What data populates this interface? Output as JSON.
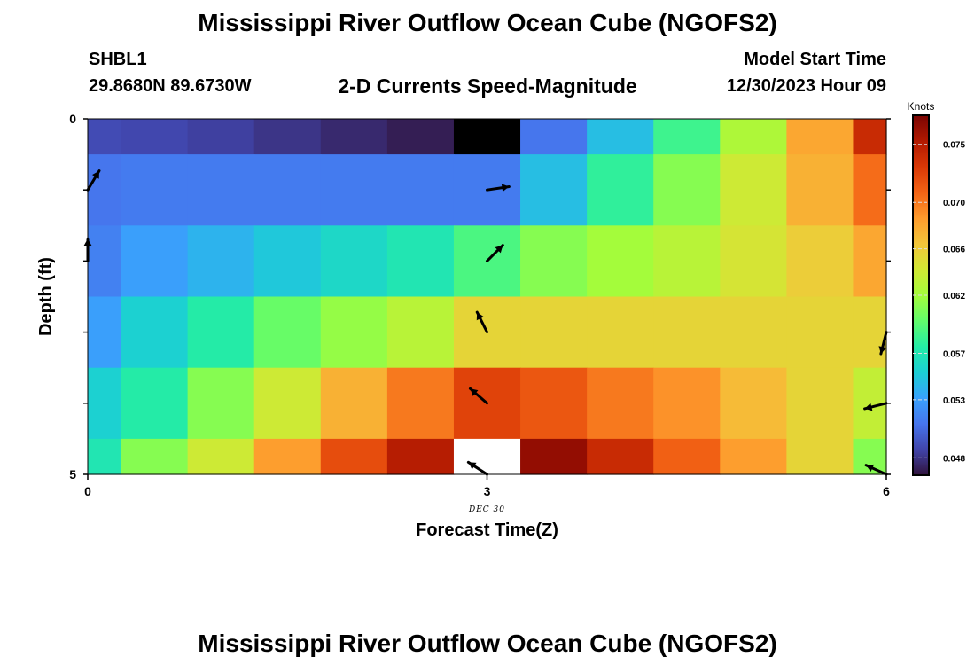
{
  "header": {
    "title": "Mississippi River Outflow Ocean Cube (NGOFS2)",
    "station_name": "SHBL1",
    "station_coords": "29.8680N  89.6730W",
    "plot_title": "2-D Currents Speed-Magnitude",
    "model_start_label": "Model Start Time",
    "model_start_value": "12/30/2023 Hour 09"
  },
  "footer": {
    "title": "Mississippi River Outflow Ocean Cube (NGOFS2)"
  },
  "chart_data": {
    "type": "heatmap",
    "title": "2-D Currents Speed-Magnitude",
    "xlabel": "Forecast Time(Z)",
    "ylabel": "Depth (ft)",
    "x_ticks": [
      "0",
      "3",
      "6"
    ],
    "x_sublabel": "DEC 30",
    "y_ticks": [
      "0",
      "5"
    ],
    "xlim": [
      0,
      6
    ],
    "ylim": [
      0,
      5
    ],
    "colorbar": {
      "unit": "Knots",
      "range": [
        0.0465,
        0.0775
      ],
      "ticks": [
        "0.075",
        "0.070",
        "0.066",
        "0.062",
        "0.057",
        "0.053",
        "0.048"
      ],
      "tick_values": [
        0.075,
        0.07,
        0.066,
        0.062,
        0.057,
        0.053,
        0.048
      ],
      "colors": [
        "#30123b",
        "#4145ab",
        "#4675ed",
        "#39a2fc",
        "#1bcfd4",
        "#24eca6",
        "#61fc6c",
        "#a4fc3b",
        "#d1e834",
        "#f3c63a",
        "#fe9b2d",
        "#f36315",
        "#d93806",
        "#b11901",
        "#7a0402"
      ]
    },
    "x_edges": [
      0,
      0.25,
      0.75,
      1.25,
      1.75,
      2.25,
      2.75,
      3.25,
      3.75,
      4.25,
      4.75,
      5.25,
      5.75,
      6
    ],
    "y_edges": [
      0,
      0.5,
      1.5,
      2.5,
      3.5,
      4.5,
      5
    ],
    "rows": [
      {
        "depth": 0,
        "values": [
          0.049,
          0.0488,
          0.0485,
          0.048,
          0.0475,
          0.047,
          "black",
          0.051,
          0.0545,
          0.0585,
          0.0625,
          0.068,
          0.074
        ]
      },
      {
        "depth": 1,
        "values": [
          0.051,
          0.0512,
          0.0512,
          0.0512,
          0.0512,
          0.0512,
          0.0512,
          0.0545,
          0.058,
          0.061,
          0.064,
          0.0675,
          0.0705
        ]
      },
      {
        "depth": 2,
        "values": [
          0.0515,
          0.053,
          0.054,
          0.055,
          0.056,
          0.057,
          0.059,
          0.061,
          0.062,
          0.063,
          0.0645,
          0.066,
          0.068
        ]
      },
      {
        "depth": 3,
        "values": [
          0.053,
          0.0555,
          0.0575,
          0.06,
          0.0615,
          0.063,
          0.0655,
          0.0655,
          0.0655,
          0.0655,
          0.0655,
          0.0655,
          0.0655
        ]
      },
      {
        "depth": 4,
        "values": [
          0.0555,
          0.0575,
          0.061,
          0.064,
          0.0675,
          0.07,
          0.0725,
          0.0715,
          0.07,
          0.069,
          0.067,
          0.0655,
          0.0635
        ]
      },
      {
        "depth": 5,
        "values": [
          0.057,
          0.061,
          0.064,
          0.0685,
          0.072,
          0.075,
          "white",
          0.0765,
          0.074,
          0.071,
          0.0685,
          0.0655,
          0.061
        ]
      }
    ],
    "arrows": [
      {
        "time": 0.0,
        "depth": 1.0,
        "dx": 0.6,
        "dy": -1.0
      },
      {
        "time": 0.0,
        "depth": 2.0,
        "dx": 0.0,
        "dy": -1.0
      },
      {
        "time": 3.0,
        "depth": 1.0,
        "dx": 1.0,
        "dy": -0.15
      },
      {
        "time": 3.0,
        "depth": 2.0,
        "dx": 0.7,
        "dy": -0.7
      },
      {
        "time": 3.0,
        "depth": 3.0,
        "dx": -0.45,
        "dy": -0.9
      },
      {
        "time": 3.0,
        "depth": 4.0,
        "dx": -0.75,
        "dy": -0.65
      },
      {
        "time": 3.0,
        "depth": 5.0,
        "dx": -0.85,
        "dy": -0.55
      },
      {
        "time": 6.0,
        "depth": 3.0,
        "dx": -0.25,
        "dy": 1.0
      },
      {
        "time": 6.0,
        "depth": 4.0,
        "dx": -1.0,
        "dy": 0.25
      },
      {
        "time": 6.0,
        "depth": 5.0,
        "dx": -1.0,
        "dy": -0.45
      }
    ],
    "grid": false,
    "legend": "right"
  }
}
